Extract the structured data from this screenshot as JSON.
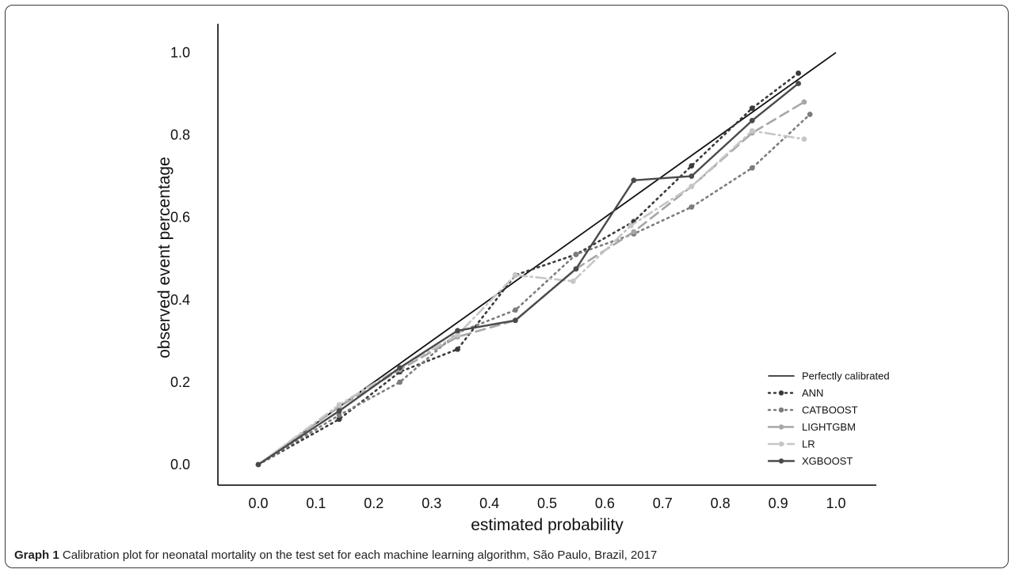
{
  "caption": {
    "label": "Graph 1",
    "text": "Calibration plot for neonatal mortality on the test set for each machine learning algorithm, São Paulo, Brazil, 2017"
  },
  "chart_data": {
    "type": "line",
    "xlabel": "estimated probability",
    "ylabel": "observed event percentage",
    "xlim": [
      -0.07,
      1.07
    ],
    "ylim": [
      -0.05,
      1.07
    ],
    "xticks": [
      "0.0",
      "0.1",
      "0.2",
      "0.3",
      "0.4",
      "0.5",
      "0.6",
      "0.7",
      "0.8",
      "0.9",
      "1.0"
    ],
    "yticks": [
      "0.0",
      "0.2",
      "0.4",
      "0.6",
      "0.8",
      "1.0"
    ],
    "grid": false,
    "legend_position": "bottom-right",
    "reference": {
      "name": "Perfectly calibrated",
      "x": [
        0.0,
        1.0
      ],
      "y": [
        0.0,
        1.0
      ],
      "color": "#111111"
    },
    "series": [
      {
        "name": "ANN",
        "style": "dotted",
        "color": "#3a3a3a",
        "x": [
          0.0,
          0.14,
          0.245,
          0.345,
          0.445,
          0.55,
          0.65,
          0.75,
          0.855,
          0.935
        ],
        "y": [
          0.0,
          0.11,
          0.225,
          0.28,
          0.46,
          0.51,
          0.59,
          0.725,
          0.865,
          0.95
        ]
      },
      {
        "name": "CATBOOST",
        "style": "dotted",
        "color": "#7c7c7c",
        "x": [
          0.0,
          0.14,
          0.245,
          0.345,
          0.445,
          0.55,
          0.65,
          0.75,
          0.855,
          0.955
        ],
        "y": [
          0.0,
          0.12,
          0.2,
          0.32,
          0.375,
          0.51,
          0.56,
          0.625,
          0.72,
          0.85
        ]
      },
      {
        "name": "LIGHTGBM",
        "style": "dashed",
        "color": "#a6a6a6",
        "x": [
          0.0,
          0.14,
          0.245,
          0.345,
          0.445,
          0.55,
          0.65,
          0.75,
          0.855,
          0.945
        ],
        "y": [
          0.0,
          0.14,
          0.23,
          0.31,
          0.35,
          0.475,
          0.565,
          0.675,
          0.805,
          0.88
        ]
      },
      {
        "name": "LR",
        "style": "dashdot",
        "color": "#c6c6c6",
        "x": [
          0.0,
          0.14,
          0.245,
          0.345,
          0.445,
          0.545,
          0.645,
          0.75,
          0.855,
          0.945
        ],
        "y": [
          0.0,
          0.145,
          0.235,
          0.315,
          0.46,
          0.445,
          0.58,
          0.675,
          0.81,
          0.79
        ]
      },
      {
        "name": "XGBOOST",
        "style": "solid",
        "color": "#4a4a4a",
        "x": [
          0.0,
          0.14,
          0.245,
          0.345,
          0.445,
          0.55,
          0.65,
          0.75,
          0.855,
          0.935
        ],
        "y": [
          0.0,
          0.13,
          0.235,
          0.325,
          0.35,
          0.475,
          0.69,
          0.7,
          0.835,
          0.925
        ]
      }
    ]
  }
}
